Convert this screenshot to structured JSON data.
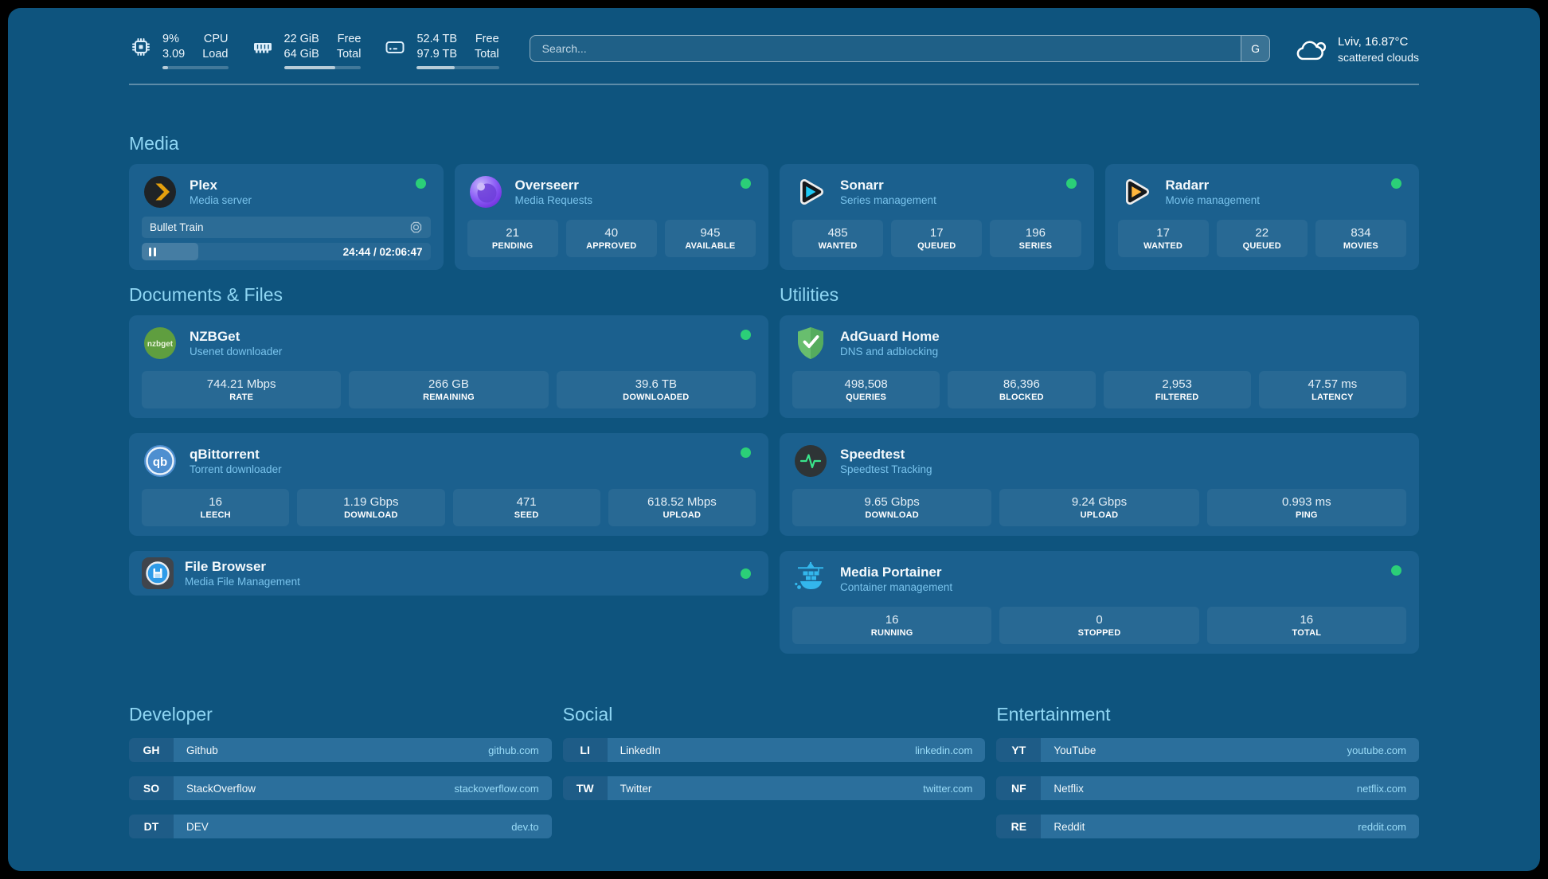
{
  "colors": {
    "background": "#0E547E",
    "card": "#1B608E",
    "section_header": "#8FD6F3",
    "status_online": "#2BCF78",
    "url_text": "#9ADCF8"
  },
  "topbar": {
    "stats": [
      {
        "icon": "cpu-icon",
        "value1": "9%",
        "value2": "3.09",
        "label1": "CPU",
        "label2": "Load",
        "progress_pct": 9
      },
      {
        "icon": "ram-icon",
        "value1": "22 GiB",
        "value2": "64 GiB",
        "label1": "Free",
        "label2": "Total",
        "progress_pct": 66
      },
      {
        "icon": "disk-icon",
        "value1": "52.4 TB",
        "value2": "97.9 TB",
        "label1": "Free",
        "label2": "Total",
        "progress_pct": 46
      }
    ],
    "search": {
      "placeholder": "Search...",
      "engine_label": "G"
    },
    "weather": {
      "icon": "cloud-icon",
      "location_temp": "Lviv, 16.87°C",
      "condition": "scattered clouds"
    }
  },
  "section_titles": {
    "media": "Media",
    "documents": "Documents & Files",
    "utilities": "Utilities"
  },
  "apps": {
    "media": [
      {
        "name": "Plex",
        "subtitle": "Media server",
        "logo": "plex-logo",
        "online": true,
        "now_playing": {
          "title": "Bullet Train",
          "time": "24:44 / 02:06:47",
          "progress_pct": 19.5,
          "state": "paused"
        }
      },
      {
        "name": "Overseerr",
        "subtitle": "Media Requests",
        "logo": "overseerr-logo",
        "online": true,
        "stats": [
          {
            "value": "21",
            "label": "PENDING"
          },
          {
            "value": "40",
            "label": "APPROVED"
          },
          {
            "value": "945",
            "label": "AVAILABLE"
          }
        ]
      },
      {
        "name": "Sonarr",
        "subtitle": "Series management",
        "logo": "sonarr-logo",
        "online": true,
        "stats": [
          {
            "value": "485",
            "label": "WANTED"
          },
          {
            "value": "17",
            "label": "QUEUED"
          },
          {
            "value": "196",
            "label": "SERIES"
          }
        ]
      },
      {
        "name": "Radarr",
        "subtitle": "Movie management",
        "logo": "radarr-logo",
        "online": true,
        "stats": [
          {
            "value": "17",
            "label": "WANTED"
          },
          {
            "value": "22",
            "label": "QUEUED"
          },
          {
            "value": "834",
            "label": "MOVIES"
          }
        ]
      }
    ],
    "documents": [
      {
        "name": "NZBGet",
        "subtitle": "Usenet downloader",
        "logo": "nzbget-logo",
        "online": true,
        "stats": [
          {
            "value": "744.21 Mbps",
            "label": "RATE"
          },
          {
            "value": "266 GB",
            "label": "REMAINING"
          },
          {
            "value": "39.6 TB",
            "label": "DOWNLOADED"
          }
        ]
      },
      {
        "name": "qBittorrent",
        "subtitle": "Torrent downloader",
        "logo": "qbittorrent-logo",
        "online": true,
        "stats": [
          {
            "value": "16",
            "label": "LEECH"
          },
          {
            "value": "1.19 Gbps",
            "label": "DOWNLOAD"
          },
          {
            "value": "471",
            "label": "SEED"
          },
          {
            "value": "618.52 Mbps",
            "label": "UPLOAD"
          }
        ]
      },
      {
        "name": "File Browser",
        "subtitle": "Media File Management",
        "logo": "filebrowser-logo",
        "online": true
      }
    ],
    "utilities": [
      {
        "name": "AdGuard Home",
        "subtitle": "DNS and adblocking",
        "logo": "adguard-logo",
        "stats": [
          {
            "value": "498,508",
            "label": "QUERIES"
          },
          {
            "value": "86,396",
            "label": "BLOCKED"
          },
          {
            "value": "2,953",
            "label": "FILTERED"
          },
          {
            "value": "47.57 ms",
            "label": "LATENCY"
          }
        ]
      },
      {
        "name": "Speedtest",
        "subtitle": "Speedtest Tracking",
        "logo": "speedtest-logo",
        "stats": [
          {
            "value": "9.65 Gbps",
            "label": "DOWNLOAD"
          },
          {
            "value": "9.24 Gbps",
            "label": "UPLOAD"
          },
          {
            "value": "0.993 ms",
            "label": "PING"
          }
        ]
      },
      {
        "name": "Media Portainer",
        "subtitle": "Container management",
        "logo": "portainer-logo",
        "online": true,
        "stats": [
          {
            "value": "16",
            "label": "RUNNING"
          },
          {
            "value": "0",
            "label": "STOPPED"
          },
          {
            "value": "16",
            "label": "TOTAL"
          }
        ]
      }
    ]
  },
  "bookmarks": [
    {
      "title": "Developer",
      "items": [
        {
          "abbr": "GH",
          "name": "Github",
          "url": "github.com"
        },
        {
          "abbr": "SO",
          "name": "StackOverflow",
          "url": "stackoverflow.com"
        },
        {
          "abbr": "DT",
          "name": "DEV",
          "url": "dev.to"
        }
      ]
    },
    {
      "title": "Social",
      "items": [
        {
          "abbr": "LI",
          "name": "LinkedIn",
          "url": "linkedin.com"
        },
        {
          "abbr": "TW",
          "name": "Twitter",
          "url": "twitter.com"
        }
      ]
    },
    {
      "title": "Entertainment",
      "items": [
        {
          "abbr": "YT",
          "name": "YouTube",
          "url": "youtube.com"
        },
        {
          "abbr": "NF",
          "name": "Netflix",
          "url": "netflix.com"
        },
        {
          "abbr": "RE",
          "name": "Reddit",
          "url": "reddit.com"
        }
      ]
    }
  ]
}
